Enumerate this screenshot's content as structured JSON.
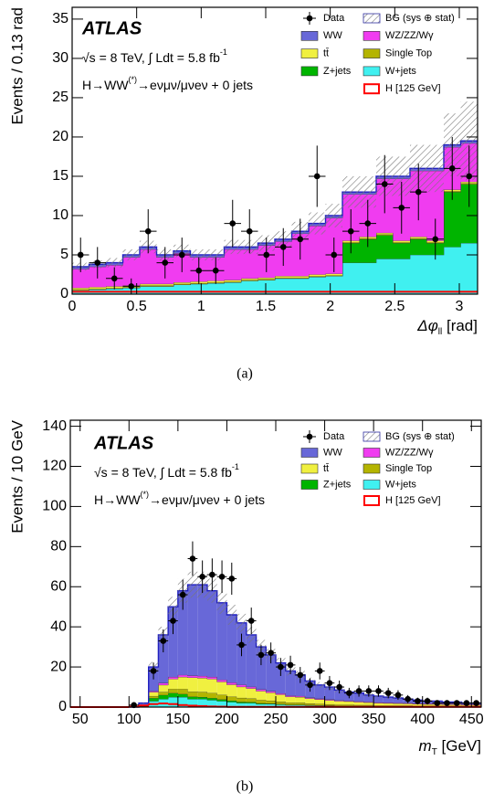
{
  "chart_data": [
    {
      "type": "histogram",
      "ylabel": "Events / 0.13 rad",
      "xlabel": [
        "Δφ",
        "ll",
        " [rad]"
      ],
      "caption": "(a)",
      "annotations": {
        "experiment": "ATLAS",
        "energy": [
          "√s = 8 TeV, ∫ Ldt = 5.8 fb",
          "-1"
        ],
        "process": [
          "H→WW",
          "(*)",
          "→eνμν/μνeν + 0 jets"
        ]
      },
      "bins": [
        0,
        0.1309,
        0.2618,
        0.3927,
        0.5236,
        0.6545,
        0.7854,
        0.9163,
        1.0472,
        1.1781,
        1.309,
        1.4399,
        1.5708,
        1.7017,
        1.8326,
        1.9635,
        2.0944,
        2.2253,
        2.3562,
        2.4871,
        2.618,
        2.7489,
        2.8798,
        3.0107,
        3.1416
      ],
      "xlim": [
        0,
        3.1416
      ],
      "xticks": [
        0,
        0.5,
        1,
        1.5,
        2,
        2.5,
        3
      ],
      "ylim": [
        0,
        36.5
      ],
      "yticks": [
        0,
        5,
        10,
        15,
        20,
        25,
        30,
        35
      ],
      "series": [
        {
          "name": "W+jets",
          "style": "stack",
          "color": "#40f0f0",
          "values": [
            0.5,
            0.6,
            0.7,
            0.8,
            1,
            1,
            1.2,
            1.3,
            1.4,
            1.5,
            1.7,
            1.8,
            2,
            2,
            2.2,
            2.3,
            4,
            4,
            4.5,
            4.5,
            5,
            5,
            6,
            6.5
          ]
        },
        {
          "name": "Z+jets",
          "style": "stack",
          "color": "#00b400",
          "values": [
            0,
            0,
            0,
            0,
            0,
            0,
            0,
            0,
            0,
            0,
            0,
            0,
            0,
            0,
            0,
            0,
            2.5,
            3,
            3,
            2,
            2,
            1.5,
            7,
            7.5
          ]
        },
        {
          "name": "Single Top",
          "style": "stack",
          "color": "#b4b400",
          "values": [
            0.1,
            0.1,
            0.1,
            0.1,
            0.1,
            0.1,
            0.1,
            0.1,
            0.1,
            0.1,
            0.1,
            0.1,
            0.1,
            0.1,
            0.1,
            0.1,
            0.1,
            0.1,
            0.1,
            0.1,
            0.1,
            0.1,
            0.1,
            0.1
          ]
        },
        {
          "name": "tt̄",
          "style": "stack",
          "color": "#f0f040",
          "values": [
            0.2,
            0.2,
            0.2,
            0.2,
            0.2,
            0.2,
            0.2,
            0.2,
            0.2,
            0.2,
            0.2,
            0.2,
            0.2,
            0.2,
            0.2,
            0.2,
            0.2,
            0.2,
            0.2,
            0.2,
            0.2,
            0.2,
            0.2,
            0.2
          ]
        },
        {
          "name": "WZ/ZZ/Wγ",
          "style": "stack",
          "color": "#f03cf0",
          "values": [
            2.4,
            2.6,
            2.7,
            3.6,
            4.4,
            3.4,
            3.7,
            3.1,
            3,
            3.9,
            3.7,
            4.1,
            4.4,
            5.4,
            6.2,
            7.1,
            5.9,
            5.4,
            6.9,
            7.9,
            8.4,
            8.9,
            5.4,
            4.9
          ]
        },
        {
          "name": "WW",
          "style": "stack",
          "color": "#6868d8",
          "values": [
            0.3,
            0.3,
            0.3,
            0.3,
            0.3,
            0.3,
            0.3,
            0.3,
            0.3,
            0.3,
            0.3,
            0.3,
            0.3,
            0.3,
            0.3,
            0.3,
            0.3,
            0.3,
            0.3,
            0.3,
            0.3,
            0.3,
            0.3,
            0.3
          ]
        },
        {
          "name": "H [125 GeV]",
          "style": "line",
          "color": "#ff0000",
          "values": [
            0.3,
            0.3,
            0.3,
            0.3,
            0.3,
            0.3,
            0.3,
            0.3,
            0.3,
            0.3,
            0.3,
            0.3,
            0.3,
            0.3,
            0.3,
            0.3,
            0.3,
            0.3,
            0.3,
            0.3,
            0.3,
            0.3,
            0.3,
            0.3
          ]
        },
        {
          "name": "BG (sys ⊕ stat)",
          "style": "band",
          "color": "#3030a0",
          "values": [
            0.5,
            0.5,
            0.6,
            0.7,
            0.8,
            0.7,
            0.8,
            0.7,
            0.7,
            0.9,
            0.9,
            1,
            1,
            1.2,
            1.4,
            1.5,
            2,
            2,
            2.5,
            2.5,
            3,
            3,
            4,
            5
          ]
        },
        {
          "name": "Data",
          "style": "points",
          "color": "#000000",
          "values": [
            5,
            4,
            2,
            1,
            8,
            4,
            5,
            3,
            3,
            9,
            8,
            5,
            6,
            7,
            15,
            5,
            8,
            9,
            14,
            11,
            13,
            7,
            16,
            15
          ],
          "errors": [
            2.2,
            2,
            1.4,
            1,
            2.8,
            2,
            2.2,
            1.7,
            1.7,
            3,
            2.8,
            2.2,
            2.4,
            2.6,
            3.9,
            2.2,
            2.8,
            3,
            3.7,
            3.3,
            3.6,
            2.6,
            4,
            3.9
          ]
        }
      ]
    },
    {
      "type": "histogram",
      "ylabel": "Events / 10 GeV",
      "xlabel": [
        "m",
        "T",
        " [GeV]"
      ],
      "caption": "(b)",
      "annotations": {
        "experiment": "ATLAS",
        "energy": [
          "√s = 8 TeV, ∫ Ldt = 5.8 fb",
          "-1"
        ],
        "process": [
          "H→WW",
          "(*)",
          "→eνμν/μνeν + 0 jets"
        ]
      },
      "bins": [
        40,
        50,
        60,
        70,
        80,
        90,
        100,
        110,
        120,
        130,
        140,
        150,
        160,
        170,
        180,
        190,
        200,
        210,
        220,
        230,
        240,
        250,
        260,
        270,
        280,
        290,
        300,
        310,
        320,
        330,
        340,
        350,
        360,
        370,
        380,
        390,
        400,
        410,
        420,
        430,
        440,
        450,
        460
      ],
      "xlim": [
        40,
        460
      ],
      "xticks": [
        50,
        100,
        150,
        200,
        250,
        300,
        350,
        400,
        450
      ],
      "ylim": [
        0,
        143
      ],
      "yticks": [
        0,
        20,
        40,
        60,
        80,
        100,
        120,
        140
      ],
      "series": [
        {
          "name": "W+jets",
          "style": "stack",
          "color": "#40f0f0",
          "values": [
            0,
            0,
            0,
            0,
            0,
            0,
            0,
            0.3,
            3,
            4,
            5,
            5,
            4,
            4,
            3.5,
            3,
            2.5,
            2,
            2,
            1.5,
            1.5,
            1.2,
            1,
            1,
            0.8,
            0.7,
            0.6,
            0.5,
            0.5,
            0.4,
            0.4,
            0.3,
            0.3,
            0.3,
            0.3,
            0.2,
            0.2,
            0.2,
            0.2,
            0.2,
            0.1,
            0.1
          ]
        },
        {
          "name": "Z+jets",
          "style": "stack",
          "color": "#00b400",
          "values": [
            0,
            0,
            0,
            0,
            0,
            0,
            0,
            0.2,
            1.5,
            2,
            2,
            1.5,
            1.2,
            1,
            1,
            0.8,
            0.7,
            0.6,
            0.5,
            0.4,
            0.3,
            0.3,
            0.2,
            0.2,
            0.2,
            0.2,
            0.2,
            0.2,
            0.2,
            0.2,
            0.2,
            0.2,
            0.2,
            0.2,
            0.2,
            0.2,
            0.2,
            0.2,
            0.2,
            0.2,
            0.2,
            0.2
          ]
        },
        {
          "name": "Single Top",
          "style": "stack",
          "color": "#b4b400",
          "values": [
            0,
            0,
            0,
            0,
            0,
            0,
            0,
            0.1,
            1,
            1.5,
            2,
            2.5,
            2.5,
            2.5,
            2.5,
            2.3,
            2,
            2,
            1.8,
            1.6,
            1.4,
            1.2,
            1,
            1,
            0.8,
            0.7,
            0.6,
            0.5,
            0.5,
            0.4,
            0.4,
            0.3,
            0.3,
            0.3,
            0.3,
            0.3,
            0.3,
            0.3,
            0.3,
            0.3,
            0.3,
            0.3
          ]
        },
        {
          "name": "tt̄",
          "style": "stack",
          "color": "#f0f040",
          "values": [
            0,
            0,
            0,
            0,
            0,
            0,
            0,
            0.2,
            2,
            3.5,
            5,
            6,
            7,
            7,
            7,
            6.5,
            6,
            5.5,
            5,
            4.5,
            4,
            3.5,
            3,
            2.8,
            2.5,
            2.2,
            2,
            1.8,
            1.6,
            1.5,
            1.3,
            1.2,
            1.1,
            1,
            0.9,
            0.8,
            0.7,
            0.7,
            0.6,
            0.6,
            0.5,
            0.5
          ]
        },
        {
          "name": "WZ/ZZ/Wγ",
          "style": "stack",
          "color": "#f03cf0",
          "values": [
            0,
            0,
            0,
            0,
            0,
            0,
            0,
            0.1,
            0.5,
            1,
            1,
            1,
            1,
            1,
            1,
            1,
            1,
            1,
            0.8,
            0.8,
            0.7,
            0.6,
            0.5,
            0.5,
            0.4,
            0.4,
            0.4,
            0.3,
            0.3,
            0.3,
            0.3,
            0.3,
            0.3,
            0.3,
            0.3,
            0.3,
            0.3,
            0.3,
            0.3,
            0.3,
            0.3,
            0.3
          ]
        },
        {
          "name": "WW",
          "style": "stack",
          "color": "#6868d8",
          "values": [
            0,
            0,
            0,
            0,
            0,
            0,
            0,
            1.1,
            12,
            24,
            35,
            42,
            45.3,
            45.5,
            43,
            38.4,
            33.8,
            30.9,
            25.9,
            21.2,
            18.1,
            15.2,
            12.3,
            10.5,
            8.3,
            6.8,
            6.2,
            5.2,
            4.4,
            4.2,
            3.4,
            3.2,
            2.8,
            2.4,
            2,
            1.7,
            1.3,
            1.3,
            0.9,
            0.9,
            0.6,
            0.6
          ]
        },
        {
          "name": "H [125 GeV]",
          "style": "line",
          "color": "#ff0000",
          "values": [
            0,
            0,
            0,
            0,
            0,
            0,
            0.2,
            0.8,
            1.5,
            1.8,
            1.5,
            1,
            0.7,
            0.5,
            0.3,
            0.2,
            0.1,
            0.1,
            0.1,
            0.1,
            0.1,
            0.1,
            0.1,
            0.1,
            0.1,
            0.1,
            0.1,
            0.1,
            0.1,
            0.1,
            0.1,
            0.1,
            0.1,
            0.1,
            0.1,
            0.1,
            0.1,
            0.1,
            0.1,
            0.1,
            0.1,
            0.1
          ]
        },
        {
          "name": "BG (sys ⊕ stat)",
          "style": "band",
          "color": "#3030a0",
          "values": [
            0,
            0,
            0,
            0,
            0,
            0,
            0,
            0.3,
            2.5,
            4,
            5,
            6,
            6.5,
            6.5,
            6,
            5.5,
            5,
            4.5,
            4,
            3.5,
            3,
            2.5,
            2.2,
            2,
            1.7,
            1.5,
            1.3,
            1.1,
            1,
            0.9,
            0.8,
            0.7,
            0.7,
            0.6,
            0.6,
            0.5,
            0.5,
            0.4,
            0.4,
            0.4,
            0.3,
            0.3
          ]
        },
        {
          "name": "Data",
          "style": "points",
          "color": "#000000",
          "values": [
            null,
            null,
            null,
            null,
            null,
            null,
            1,
            null,
            18,
            33,
            43,
            56,
            74,
            65,
            66,
            65,
            64,
            31,
            43,
            26,
            27,
            20,
            21,
            16,
            11,
            18,
            12,
            10,
            7,
            8,
            8,
            8,
            7,
            6,
            4,
            3,
            3,
            2,
            2,
            2,
            2,
            2
          ],
          "errors": [
            null,
            null,
            null,
            null,
            null,
            null,
            1,
            null,
            4.2,
            5.7,
            6.6,
            7.5,
            8.6,
            8.1,
            8.1,
            8.1,
            8,
            5.6,
            6.6,
            5.1,
            5.2,
            4.5,
            4.6,
            4,
            3.3,
            4.2,
            3.5,
            3.2,
            2.6,
            2.8,
            2.8,
            2.8,
            2.6,
            2.4,
            2,
            1.7,
            1.7,
            1.4,
            1.4,
            1.4,
            1.4,
            1.4
          ]
        }
      ]
    }
  ]
}
